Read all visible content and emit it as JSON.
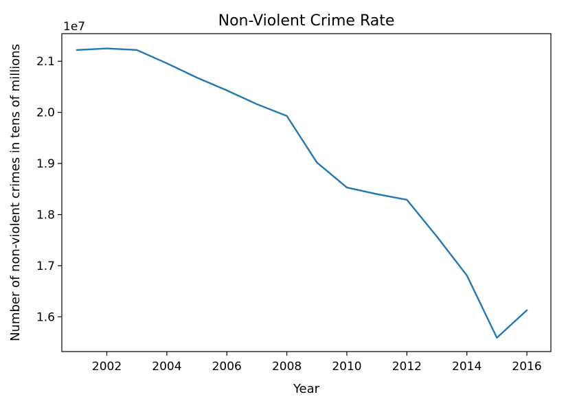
{
  "chart_data": {
    "type": "line",
    "title": "Non-Violent Crime Rate",
    "xlabel": "Year",
    "ylabel": "Number of non-violent crimes in tens of millions",
    "y_offset_label": "1e7",
    "xlim": [
      2000.5,
      2016.8
    ],
    "ylim": [
      1.532,
      2.154
    ],
    "x_ticks": [
      2002,
      2004,
      2006,
      2008,
      2010,
      2012,
      2014,
      2016
    ],
    "x_tick_labels": [
      "2002",
      "2004",
      "2006",
      "2008",
      "2010",
      "2012",
      "2014",
      "2016"
    ],
    "y_ticks": [
      1.6,
      1.7,
      1.8,
      1.9,
      2.0,
      2.1
    ],
    "y_tick_labels": [
      "1.6",
      "1.7",
      "1.8",
      "1.9",
      "2.0",
      "2.1"
    ],
    "series": [
      {
        "color": "#1f77b4",
        "x": [
          2001,
          2002,
          2003,
          2004,
          2005,
          2006,
          2007,
          2008,
          2009,
          2010,
          2011,
          2012,
          2013,
          2014,
          2015,
          2016
        ],
        "values": [
          2.122,
          2.125,
          2.122,
          2.096,
          2.068,
          2.043,
          2.016,
          1.993,
          1.902,
          1.853,
          1.84,
          1.829,
          1.757,
          1.681,
          1.559,
          1.613
        ]
      }
    ],
    "grid": false,
    "legend": "none"
  }
}
